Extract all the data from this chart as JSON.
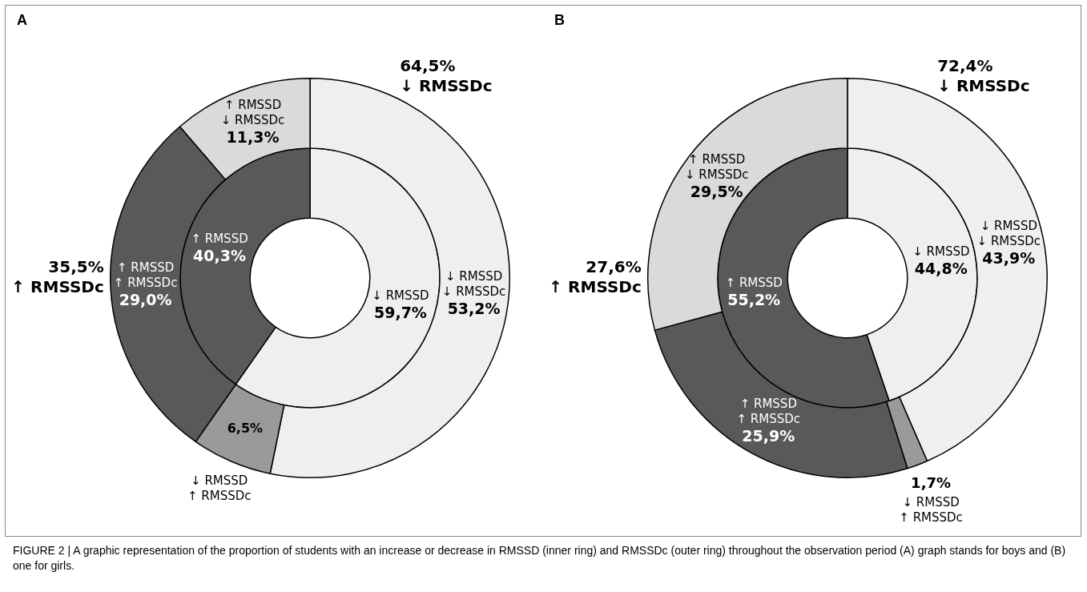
{
  "chart_data": [
    {
      "type": "donut",
      "title": "A",
      "categories": [
        null,
        null,
        "↓ RMSSD\n↓ RMSSDc",
        "↓ RMSSD\n↑ RMSSDc",
        "↑ RMSSD\n↑ RMSSDc",
        "↑ RMSSD\n↓ RMSSDc"
      ],
      "series": [
        {
          "values": [
            null,
            null,
            53.2,
            6.5,
            29.0,
            11.3
          ],
          "value_labels": [
            null,
            null,
            "53,2%",
            "6,5%",
            "29,0%",
            "11,3%"
          ],
          "colors": [
            "#efefef",
            "#595959",
            "#efefef",
            "#9a9a9a",
            "#595959",
            "#dadada"
          ]
        },
        {
          "values": [
            59.7,
            40.3,
            null,
            null,
            null,
            null
          ],
          "value_labels": [
            "59,7%",
            "40,3%",
            null,
            null,
            null,
            null
          ],
          "colors": [
            "#efefef",
            "#595959",
            "#efefef",
            "#9a9a9a",
            "#595959",
            "#dadada"
          ]
        }
      ],
      "annotations": [
        "64,5%\n↓ RMSSDc",
        "35,5%\n↑ RMSSDc",
        "↓ RMSSD",
        "↑ RMSSD",
        "FIGURE 2 | A graphic representation of the proportion of students with an increase or decrease in RMSSD (inner ring) and RMSSDc (outer ring) throughout the observation period (A) graph stands for boys and (B) one for girls."
      ]
    },
    {
      "type": "donut",
      "title": "B",
      "categories": [
        null,
        null,
        "↓ RMSSD\n↓ RMSSDc",
        "↓ RMSSD\n↑ RMSSDc",
        "↑ RMSSD\n↑ RMSSDc",
        "↑ RMSSD\n↓ RMSSDc"
      ],
      "series": [
        {
          "values": [
            null,
            null,
            43.9,
            1.7,
            25.9,
            29.5
          ],
          "value_labels": [
            null,
            null,
            "43,9%",
            "1,7%",
            "25,9%",
            "29,5%"
          ],
          "colors": [
            "#efefef",
            "#595959",
            "#efefef",
            "#9a9a9a",
            "#595959",
            "#dadada"
          ]
        },
        {
          "values": [
            44.8,
            55.2,
            null,
            null,
            null,
            null
          ],
          "value_labels": [
            "44,8%",
            "55,2%",
            null,
            null,
            null,
            null
          ],
          "colors": [
            "#efefef",
            "#595959",
            "#efefef",
            "#9a9a9a",
            "#595959",
            "#dadada"
          ]
        }
      ],
      "annotations": [
        "72,4%\n↓ RMSSDc",
        "27,6%\n↑ RMSSDc",
        "↓ RMSSD",
        "↑ RMSSD"
      ]
    }
  ]
}
